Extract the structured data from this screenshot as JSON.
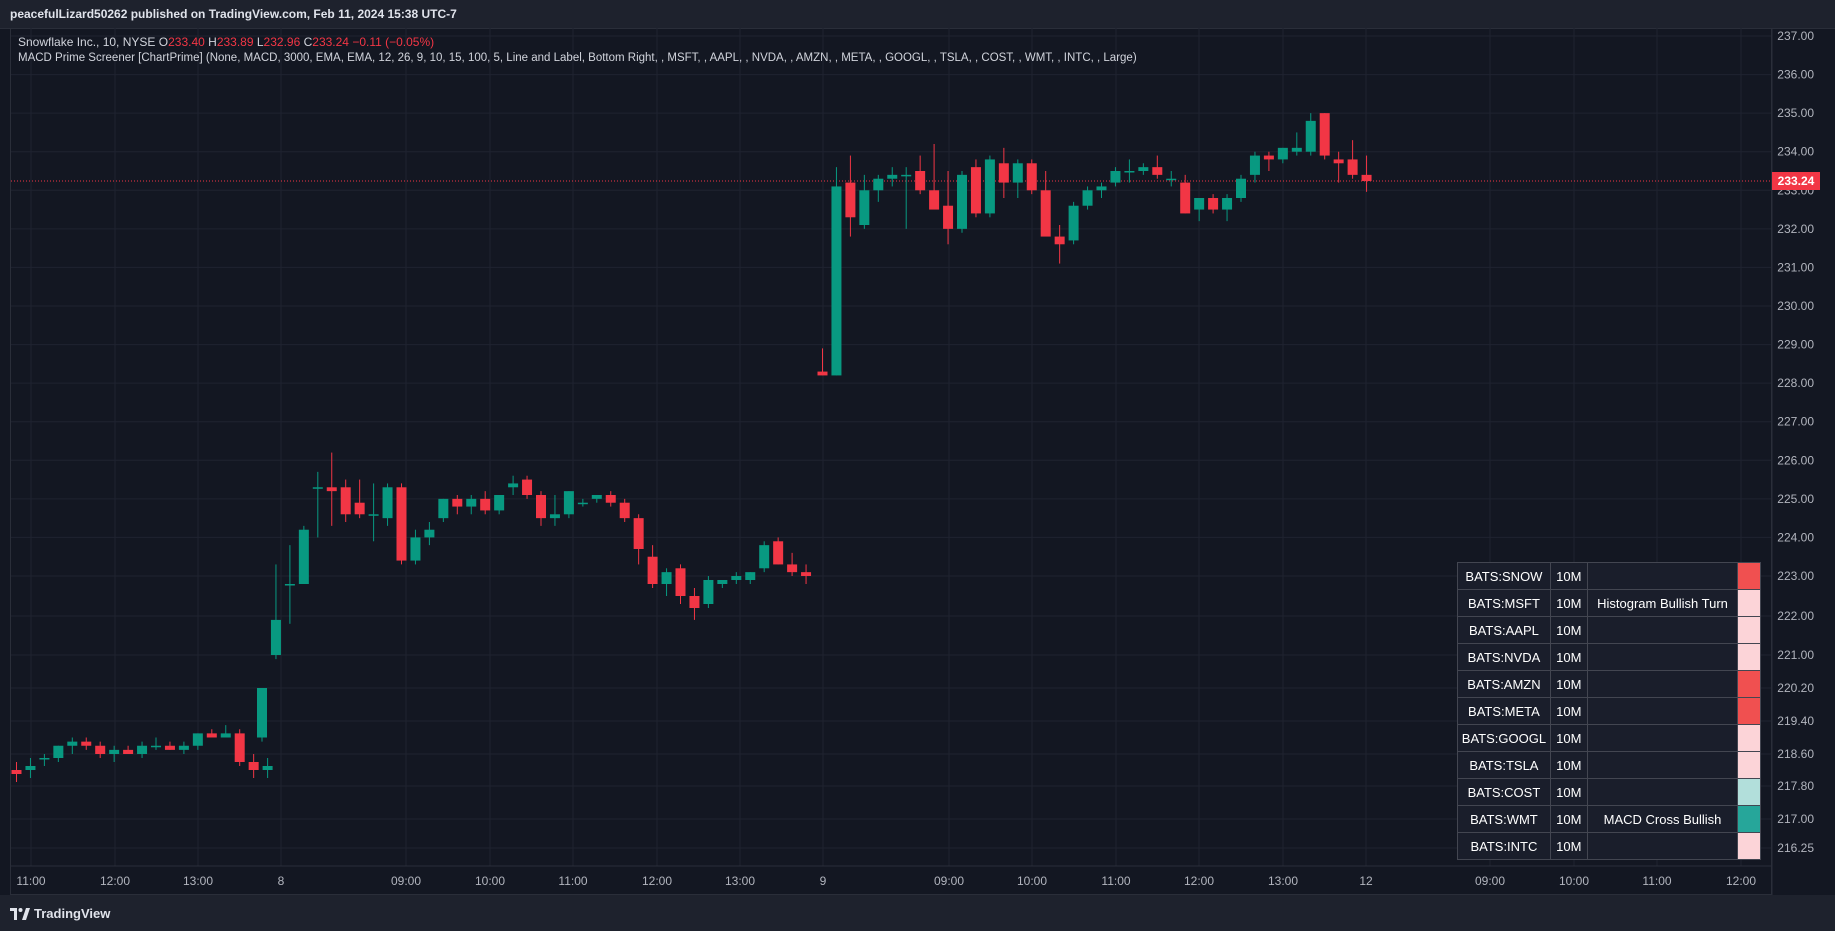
{
  "header": {
    "publish_line": "peacefulLizard50262 published on TradingView.com, Feb 11, 2024 15:38 UTC-7"
  },
  "legend": {
    "symbol": "Snowflake Inc., 10, NYSE",
    "o_label": "O",
    "o_val": "233.40",
    "h_label": "H",
    "h_val": "233.89",
    "l_label": "L",
    "l_val": "232.96",
    "c_label": "C",
    "c_val": "233.24",
    "change": "−0.11 (−0.05%)",
    "indicator": "MACD Prime Screener [ChartPrime] (None, MACD, 3000, EMA, EMA, 12, 26, 9, 10, 15, 100, 5, Line and Label, Bottom Right, , MSFT, , AAPL, , NVDA, , AMZN, , META, , GOOGL, , TSLA, , COST, , WMT, , INTC, , Large)"
  },
  "colors": {
    "up": "#089981",
    "down": "#f23645",
    "background": "#131722",
    "grid": "#1f2330"
  },
  "price_axis": {
    "labels": [
      "237.00",
      "236.00",
      "235.00",
      "234.00",
      "233.00",
      "232.00",
      "231.00",
      "230.00",
      "229.00",
      "228.00",
      "227.00",
      "226.00",
      "225.00",
      "224.00",
      "223.00",
      "222.00",
      "221.00",
      "220.20",
      "219.40",
      "218.60",
      "217.80",
      "217.00",
      "216.25"
    ],
    "last_price": "233.24"
  },
  "time_axis": {
    "labels": [
      "11:00",
      "12:00",
      "13:00",
      "8",
      "09:00",
      "10:00",
      "11:00",
      "12:00",
      "13:00",
      "9",
      "09:00",
      "10:00",
      "11:00",
      "12:00",
      "13:00",
      "12",
      "09:00",
      "10:00",
      "11:00",
      "12:00"
    ]
  },
  "screener": {
    "rows": [
      {
        "symbol": "BATS:SNOW",
        "tf": "10M",
        "signal": "",
        "color": "#f05050"
      },
      {
        "symbol": "BATS:MSFT",
        "tf": "10M",
        "signal": "Histogram Bullish Turn",
        "color": "#fcd4d8"
      },
      {
        "symbol": "BATS:AAPL",
        "tf": "10M",
        "signal": "",
        "color": "#fcd4d8"
      },
      {
        "symbol": "BATS:NVDA",
        "tf": "10M",
        "signal": "",
        "color": "#fcd4d8"
      },
      {
        "symbol": "BATS:AMZN",
        "tf": "10M",
        "signal": "",
        "color": "#f05050"
      },
      {
        "symbol": "BATS:META",
        "tf": "10M",
        "signal": "",
        "color": "#f05050"
      },
      {
        "symbol": "BATS:GOOGL",
        "tf": "10M",
        "signal": "",
        "color": "#fcd4d8"
      },
      {
        "symbol": "BATS:TSLA",
        "tf": "10M",
        "signal": "",
        "color": "#fcd4d8"
      },
      {
        "symbol": "BATS:COST",
        "tf": "10M",
        "signal": "",
        "color": "#b2dfdb"
      },
      {
        "symbol": "BATS:WMT",
        "tf": "10M",
        "signal": "MACD Cross Bullish",
        "color": "#26a69a"
      },
      {
        "symbol": "BATS:INTC",
        "tf": "10M",
        "signal": "",
        "color": "#fcd4d8"
      }
    ]
  },
  "footer": {
    "brand": "TradingView"
  },
  "chart_data": {
    "type": "candlestick",
    "candles": [
      {
        "o": 218.2,
        "h": 218.4,
        "l": 217.9,
        "c": 218.1
      },
      {
        "o": 218.2,
        "h": 218.5,
        "l": 218.0,
        "c": 218.3
      },
      {
        "o": 218.5,
        "h": 218.6,
        "l": 218.3,
        "c": 218.5
      },
      {
        "o": 218.5,
        "h": 218.8,
        "l": 218.4,
        "c": 218.8
      },
      {
        "o": 218.8,
        "h": 219.0,
        "l": 218.6,
        "c": 218.9
      },
      {
        "o": 218.9,
        "h": 219.0,
        "l": 218.7,
        "c": 218.8
      },
      {
        "o": 218.8,
        "h": 218.9,
        "l": 218.5,
        "c": 218.6
      },
      {
        "o": 218.6,
        "h": 218.8,
        "l": 218.4,
        "c": 218.7
      },
      {
        "o": 218.7,
        "h": 218.8,
        "l": 218.6,
        "c": 218.6
      },
      {
        "o": 218.6,
        "h": 218.9,
        "l": 218.5,
        "c": 218.8
      },
      {
        "o": 218.8,
        "h": 219.0,
        "l": 218.7,
        "c": 218.8
      },
      {
        "o": 218.8,
        "h": 218.9,
        "l": 218.7,
        "c": 218.7
      },
      {
        "o": 218.7,
        "h": 218.9,
        "l": 218.6,
        "c": 218.8
      },
      {
        "o": 218.8,
        "h": 219.1,
        "l": 218.7,
        "c": 219.1
      },
      {
        "o": 219.1,
        "h": 219.2,
        "l": 219.0,
        "c": 219.0
      },
      {
        "o": 219.0,
        "h": 219.3,
        "l": 219.0,
        "c": 219.1
      },
      {
        "o": 219.1,
        "h": 219.2,
        "l": 218.3,
        "c": 218.4
      },
      {
        "o": 218.4,
        "h": 218.6,
        "l": 218.0,
        "c": 218.2
      },
      {
        "o": 218.2,
        "h": 218.5,
        "l": 218.0,
        "c": 218.3
      },
      {
        "o": 219.0,
        "h": 220.2,
        "l": 218.9,
        "c": 220.2
      },
      {
        "o": 221.0,
        "h": 223.3,
        "l": 220.9,
        "c": 221.9
      },
      {
        "o": 222.8,
        "h": 223.8,
        "l": 221.8,
        "c": 222.8
      },
      {
        "o": 222.8,
        "h": 224.3,
        "l": 222.8,
        "c": 224.2
      },
      {
        "o": 225.3,
        "h": 225.7,
        "l": 224.0,
        "c": 225.3
      },
      {
        "o": 225.3,
        "h": 226.2,
        "l": 224.3,
        "c": 225.2
      },
      {
        "o": 225.3,
        "h": 225.5,
        "l": 224.4,
        "c": 224.6
      },
      {
        "o": 224.9,
        "h": 225.5,
        "l": 224.5,
        "c": 224.6
      },
      {
        "o": 224.6,
        "h": 225.4,
        "l": 223.9,
        "c": 224.6
      },
      {
        "o": 224.5,
        "h": 225.4,
        "l": 224.3,
        "c": 225.3
      },
      {
        "o": 225.3,
        "h": 225.4,
        "l": 223.3,
        "c": 223.4
      },
      {
        "o": 223.4,
        "h": 224.2,
        "l": 223.3,
        "c": 224.0
      },
      {
        "o": 224.0,
        "h": 224.4,
        "l": 223.8,
        "c": 224.2
      },
      {
        "o": 224.5,
        "h": 225.0,
        "l": 224.4,
        "c": 225.0
      },
      {
        "o": 225.0,
        "h": 225.1,
        "l": 224.6,
        "c": 224.8
      },
      {
        "o": 224.8,
        "h": 225.1,
        "l": 224.6,
        "c": 225.0
      },
      {
        "o": 225.0,
        "h": 225.2,
        "l": 224.6,
        "c": 224.7
      },
      {
        "o": 224.7,
        "h": 225.1,
        "l": 224.6,
        "c": 225.1
      },
      {
        "o": 225.3,
        "h": 225.6,
        "l": 225.1,
        "c": 225.4
      },
      {
        "o": 225.5,
        "h": 225.6,
        "l": 225.0,
        "c": 225.1
      },
      {
        "o": 225.1,
        "h": 225.2,
        "l": 224.3,
        "c": 224.5
      },
      {
        "o": 224.5,
        "h": 225.1,
        "l": 224.3,
        "c": 224.6
      },
      {
        "o": 224.6,
        "h": 225.2,
        "l": 224.5,
        "c": 225.2
      },
      {
        "o": 224.9,
        "h": 225.0,
        "l": 224.8,
        "c": 224.9
      },
      {
        "o": 225.0,
        "h": 225.1,
        "l": 224.9,
        "c": 225.1
      },
      {
        "o": 225.1,
        "h": 225.2,
        "l": 224.8,
        "c": 224.9
      },
      {
        "o": 224.9,
        "h": 225.0,
        "l": 224.4,
        "c": 224.5
      },
      {
        "o": 224.5,
        "h": 224.6,
        "l": 223.3,
        "c": 223.7
      },
      {
        "o": 223.5,
        "h": 223.8,
        "l": 222.7,
        "c": 222.8
      },
      {
        "o": 222.8,
        "h": 223.2,
        "l": 222.5,
        "c": 223.1
      },
      {
        "o": 223.2,
        "h": 223.3,
        "l": 222.3,
        "c": 222.5
      },
      {
        "o": 222.5,
        "h": 222.7,
        "l": 221.9,
        "c": 222.2
      },
      {
        "o": 222.3,
        "h": 223.0,
        "l": 222.2,
        "c": 222.9
      },
      {
        "o": 222.8,
        "h": 222.9,
        "l": 222.7,
        "c": 222.9
      },
      {
        "o": 222.9,
        "h": 223.1,
        "l": 222.8,
        "c": 223.0
      },
      {
        "o": 222.9,
        "h": 223.1,
        "l": 222.8,
        "c": 223.1
      },
      {
        "o": 223.2,
        "h": 223.9,
        "l": 223.1,
        "c": 223.8
      },
      {
        "o": 223.9,
        "h": 224.0,
        "l": 223.3,
        "c": 223.3
      },
      {
        "o": 223.3,
        "h": 223.6,
        "l": 223.0,
        "c": 223.1
      },
      {
        "o": 223.1,
        "h": 223.3,
        "l": 222.8,
        "c": 223.0
      },
      {
        "o": 228.3,
        "h": 228.9,
        "l": 228.2,
        "c": 228.2
      },
      {
        "o": 228.2,
        "h": 233.6,
        "l": 228.2,
        "c": 233.1
      },
      {
        "o": 233.2,
        "h": 233.9,
        "l": 231.8,
        "c": 232.3
      },
      {
        "o": 232.1,
        "h": 233.4,
        "l": 232.0,
        "c": 233.0
      },
      {
        "o": 233.0,
        "h": 233.4,
        "l": 232.7,
        "c": 233.3
      },
      {
        "o": 233.3,
        "h": 233.6,
        "l": 233.1,
        "c": 233.4
      },
      {
        "o": 233.4,
        "h": 233.6,
        "l": 232.0,
        "c": 233.4
      },
      {
        "o": 233.5,
        "h": 233.9,
        "l": 232.9,
        "c": 233.0
      },
      {
        "o": 233.0,
        "h": 234.2,
        "l": 232.6,
        "c": 232.5
      },
      {
        "o": 232.6,
        "h": 233.5,
        "l": 231.6,
        "c": 232.0
      },
      {
        "o": 232.0,
        "h": 233.5,
        "l": 231.9,
        "c": 233.4
      },
      {
        "o": 233.6,
        "h": 233.8,
        "l": 232.3,
        "c": 232.4
      },
      {
        "o": 232.4,
        "h": 233.9,
        "l": 232.3,
        "c": 233.8
      },
      {
        "o": 233.7,
        "h": 234.1,
        "l": 232.8,
        "c": 233.2
      },
      {
        "o": 233.2,
        "h": 233.8,
        "l": 232.8,
        "c": 233.7
      },
      {
        "o": 233.7,
        "h": 233.8,
        "l": 232.9,
        "c": 233.0
      },
      {
        "o": 233.0,
        "h": 233.5,
        "l": 231.9,
        "c": 231.8
      },
      {
        "o": 231.8,
        "h": 232.1,
        "l": 231.1,
        "c": 231.6
      },
      {
        "o": 231.7,
        "h": 232.7,
        "l": 231.6,
        "c": 232.6
      },
      {
        "o": 232.6,
        "h": 233.1,
        "l": 232.5,
        "c": 233.0
      },
      {
        "o": 233.0,
        "h": 233.2,
        "l": 232.8,
        "c": 233.1
      },
      {
        "o": 233.2,
        "h": 233.6,
        "l": 233.1,
        "c": 233.5
      },
      {
        "o": 233.5,
        "h": 233.8,
        "l": 233.2,
        "c": 233.5
      },
      {
        "o": 233.5,
        "h": 233.7,
        "l": 233.4,
        "c": 233.6
      },
      {
        "o": 233.6,
        "h": 233.9,
        "l": 233.3,
        "c": 233.4
      },
      {
        "o": 233.3,
        "h": 233.5,
        "l": 233.1,
        "c": 233.3
      },
      {
        "o": 233.2,
        "h": 233.4,
        "l": 232.4,
        "c": 232.4
      },
      {
        "o": 232.5,
        "h": 232.8,
        "l": 232.2,
        "c": 232.8
      },
      {
        "o": 232.8,
        "h": 232.9,
        "l": 232.4,
        "c": 232.5
      },
      {
        "o": 232.5,
        "h": 232.9,
        "l": 232.2,
        "c": 232.8
      },
      {
        "o": 232.8,
        "h": 233.4,
        "l": 232.7,
        "c": 233.3
      },
      {
        "o": 233.4,
        "h": 234.0,
        "l": 233.2,
        "c": 233.9
      },
      {
        "o": 233.9,
        "h": 234.0,
        "l": 233.5,
        "c": 233.8
      },
      {
        "o": 233.8,
        "h": 234.1,
        "l": 233.7,
        "c": 234.1
      },
      {
        "o": 234.0,
        "h": 234.5,
        "l": 233.9,
        "c": 234.1
      },
      {
        "o": 234.0,
        "h": 235.0,
        "l": 233.9,
        "c": 234.8
      },
      {
        "o": 235.0,
        "h": 235.0,
        "l": 233.8,
        "c": 233.9
      },
      {
        "o": 233.8,
        "h": 234.0,
        "l": 233.2,
        "c": 233.7
      },
      {
        "o": 233.8,
        "h": 234.3,
        "l": 233.3,
        "c": 233.4
      },
      {
        "o": 233.4,
        "h": 233.9,
        "l": 232.96,
        "c": 233.24
      }
    ]
  }
}
